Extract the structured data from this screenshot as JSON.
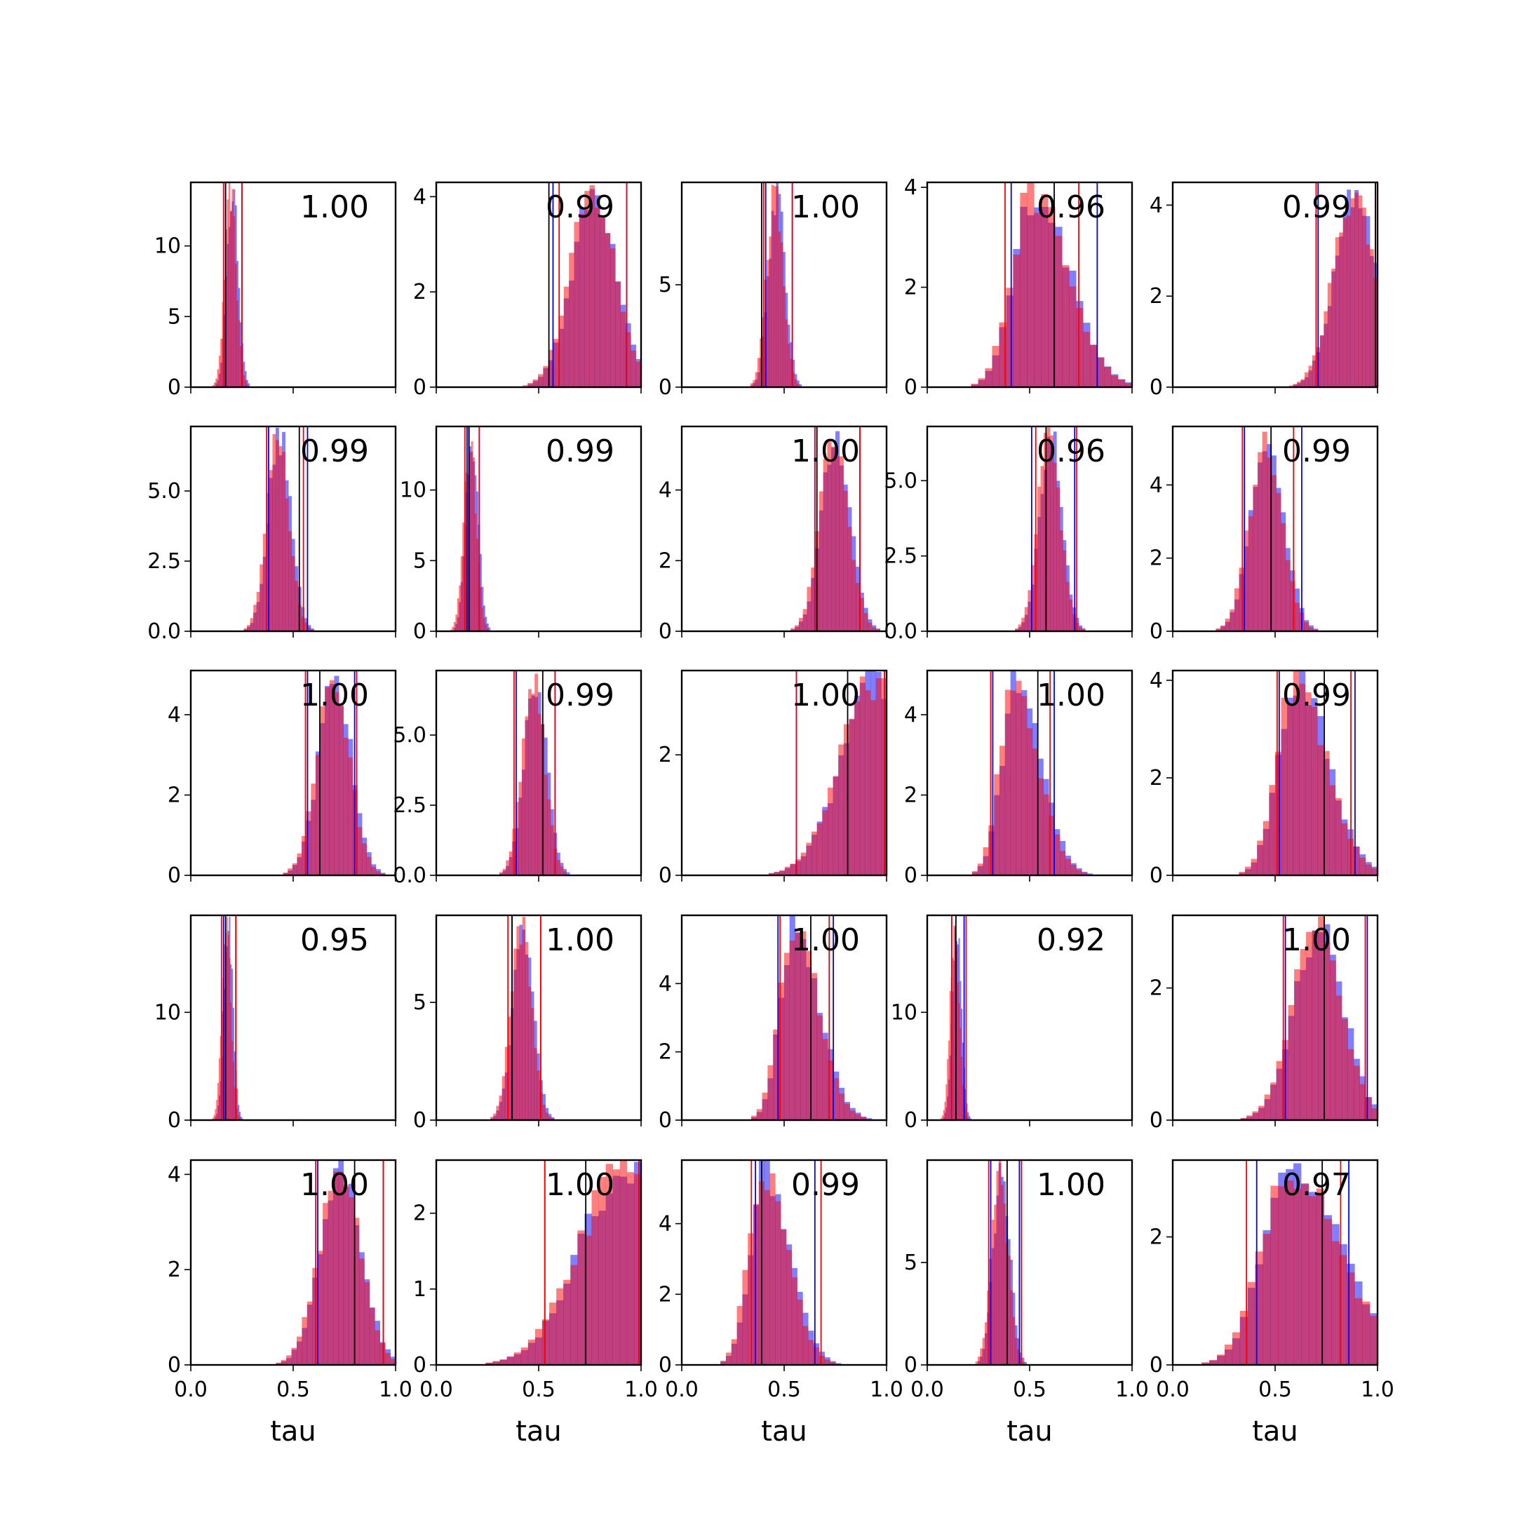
{
  "chart_data": {
    "type": "histogram-grid",
    "rows": 5,
    "cols": 5,
    "xlabel": "tau",
    "xlim": [
      0.0,
      1.0
    ],
    "xticks": [
      0.0,
      0.5,
      1.0
    ],
    "xtick_labels": [
      "0.0",
      "0.5",
      "1.0"
    ],
    "series_colors": {
      "blue": "#0000ff",
      "red": "#ff0000",
      "median": "#000000"
    },
    "series_alpha": 0.5,
    "panels": [
      {
        "corr": "1.00",
        "ylim": [
          0,
          14.5
        ],
        "yticks": [
          0,
          5,
          10
        ],
        "ylabels": [
          "0",
          "5",
          "10"
        ],
        "mean": 0.2,
        "sd": 0.028,
        "skew": 0,
        "vb": [
          0.17,
          0.25
        ],
        "vr": [
          0.16,
          0.25
        ],
        "vk": 0.17
      },
      {
        "corr": "0.99",
        "ylim": [
          0,
          4.3
        ],
        "yticks": [
          0,
          2,
          4
        ],
        "ylabels": [
          "0",
          "2",
          "4"
        ],
        "mean": 0.77,
        "sd": 0.11,
        "skew": 0,
        "vb": [
          0.57,
          0.93
        ],
        "vr": [
          0.6,
          0.93
        ],
        "vk": 0.55
      },
      {
        "corr": "1.00",
        "ylim": [
          0,
          10
        ],
        "yticks": [
          0,
          5
        ],
        "ylabels": [
          "0",
          "5"
        ],
        "mean": 0.46,
        "sd": 0.04,
        "skew": 0,
        "vb": [
          0.41,
          0.54
        ],
        "vr": [
          0.4,
          0.54
        ],
        "vk": 0.39
      },
      {
        "corr": "0.96",
        "ylim": [
          0,
          4.1
        ],
        "yticks": [
          0,
          2,
          4
        ],
        "ylabels": [
          "0",
          "2",
          "4"
        ],
        "mean": 0.52,
        "sd": 0.1,
        "skew": 1,
        "vb": [
          0.41,
          0.83
        ],
        "vr": [
          0.38,
          0.74
        ],
        "vk": 0.62
      },
      {
        "corr": "0.99",
        "ylim": [
          0,
          4.5
        ],
        "yticks": [
          0,
          2,
          4
        ],
        "ylabels": [
          "0",
          "2",
          "4"
        ],
        "mean": 0.89,
        "sd": 0.1,
        "skew": 0,
        "vb": [
          0.71,
          0.99
        ],
        "vr": [
          0.7,
          0.99
        ],
        "vk": 0.99
      },
      {
        "corr": "0.99",
        "ylim": [
          0,
          7.3
        ],
        "yticks": [
          0,
          2.5,
          5.0
        ],
        "ylabels": [
          "0.0",
          "2.5",
          "5.0"
        ],
        "mean": 0.43,
        "sd": 0.055,
        "skew": 0,
        "vb": [
          0.38,
          0.57
        ],
        "vr": [
          0.37,
          0.55
        ],
        "vk": 0.53
      },
      {
        "corr": "0.99",
        "ylim": [
          0,
          14.5
        ],
        "yticks": [
          0,
          5,
          10
        ],
        "ylabels": [
          "0",
          "5",
          "10"
        ],
        "mean": 0.17,
        "sd": 0.03,
        "skew": 0,
        "vb": [
          0.15,
          0.21
        ],
        "vr": [
          0.14,
          0.21
        ],
        "vk": 0.16
      },
      {
        "corr": "1.00",
        "ylim": [
          0,
          5.8
        ],
        "yticks": [
          0,
          2,
          4
        ],
        "ylabels": [
          "0",
          "2",
          "4"
        ],
        "mean": 0.75,
        "sd": 0.07,
        "skew": 0,
        "vb": [
          0.65,
          0.87
        ],
        "vr": [
          0.65,
          0.87
        ],
        "vk": 0.66
      },
      {
        "corr": "0.96",
        "ylim": [
          0,
          6.8
        ],
        "yticks": [
          0,
          2.5,
          5.0
        ],
        "ylabels": [
          "0.0",
          "2.5",
          "5.0"
        ],
        "mean": 0.6,
        "sd": 0.055,
        "skew": 0,
        "vb": [
          0.51,
          0.72
        ],
        "vr": [
          0.53,
          0.73
        ],
        "vk": 0.58
      },
      {
        "corr": "0.99",
        "ylim": [
          0,
          5.6
        ],
        "yticks": [
          0,
          2,
          4
        ],
        "ylabels": [
          "0",
          "2",
          "4"
        ],
        "mean": 0.46,
        "sd": 0.08,
        "skew": 0,
        "vb": [
          0.35,
          0.63
        ],
        "vr": [
          0.34,
          0.59
        ],
        "vk": 0.48
      },
      {
        "corr": "1.00",
        "ylim": [
          0,
          5.1
        ],
        "yticks": [
          0,
          2,
          4
        ],
        "ylabels": [
          "0",
          "2",
          "4"
        ],
        "mean": 0.7,
        "sd": 0.08,
        "skew": 0,
        "vb": [
          0.57,
          0.8
        ],
        "vr": [
          0.56,
          0.81
        ],
        "vk": 0.63
      },
      {
        "corr": "0.99",
        "ylim": [
          0,
          7.3
        ],
        "yticks": [
          0,
          2.5,
          5.0
        ],
        "ylabels": [
          "0.0",
          "2.5",
          "5.0"
        ],
        "mean": 0.48,
        "sd": 0.055,
        "skew": 0,
        "vb": [
          0.39,
          0.58
        ],
        "vr": [
          0.38,
          0.58
        ],
        "vk": 0.52
      },
      {
        "corr": "1.00",
        "ylim": [
          0,
          3.4
        ],
        "yticks": [
          0,
          2
        ],
        "ylabels": [
          "0",
          "2"
        ],
        "mean": 0.95,
        "sd": 0.17,
        "skew": 0,
        "vb": [
          0.56,
          0.99
        ],
        "vr": [
          0.56,
          0.99
        ],
        "vk": 0.81
      },
      {
        "corr": "1.00",
        "ylim": [
          0,
          5.1
        ],
        "yticks": [
          0,
          2,
          4
        ],
        "ylabels": [
          "0",
          "2",
          "4"
        ],
        "mean": 0.43,
        "sd": 0.07,
        "skew": 1,
        "vb": [
          0.32,
          0.62
        ],
        "vr": [
          0.31,
          0.6
        ],
        "vk": 0.54
      },
      {
        "corr": "0.99",
        "ylim": [
          0,
          4.2
        ],
        "yticks": [
          0,
          2,
          4
        ],
        "ylabels": [
          "0",
          "2",
          "4"
        ],
        "mean": 0.6,
        "sd": 0.09,
        "skew": 1,
        "vb": [
          0.52,
          0.89
        ],
        "vr": [
          0.51,
          0.87
        ],
        "vk": 0.74
      },
      {
        "corr": "0.95",
        "ylim": [
          0,
          19
        ],
        "yticks": [
          0,
          10
        ],
        "ylabels": [
          "0",
          "10"
        ],
        "mean": 0.18,
        "sd": 0.022,
        "skew": 0,
        "vb": [
          0.16,
          0.22
        ],
        "vr": [
          0.15,
          0.22
        ],
        "vk": 0.17
      },
      {
        "corr": "1.00",
        "ylim": [
          0,
          8.7
        ],
        "yticks": [
          0,
          5
        ],
        "ylabels": [
          "0",
          "5"
        ],
        "mean": 0.42,
        "sd": 0.05,
        "skew": 0,
        "vb": [
          0.37,
          0.51
        ],
        "vr": [
          0.35,
          0.51
        ],
        "vk": 0.37
      },
      {
        "corr": "1.00",
        "ylim": [
          0,
          6.0
        ],
        "yticks": [
          0,
          2,
          4
        ],
        "ylabels": [
          "0",
          "2",
          "4"
        ],
        "mean": 0.55,
        "sd": 0.07,
        "skew": 1,
        "vb": [
          0.47,
          0.74
        ],
        "vr": [
          0.48,
          0.72
        ],
        "vk": 0.63
      },
      {
        "corr": "0.92",
        "ylim": [
          0,
          19
        ],
        "yticks": [
          0,
          10
        ],
        "ylabels": [
          "0",
          "10"
        ],
        "mean": 0.14,
        "sd": 0.022,
        "skew": 0,
        "vb": [
          0.12,
          0.18
        ],
        "vr": [
          0.12,
          0.19
        ],
        "vk": 0.14
      },
      {
        "corr": "1.00",
        "ylim": [
          0,
          3.1
        ],
        "yticks": [
          0,
          2
        ],
        "ylabels": [
          "0",
          "2"
        ],
        "mean": 0.71,
        "sd": 0.12,
        "skew": 0,
        "vb": [
          0.55,
          0.95
        ],
        "vr": [
          0.54,
          0.94
        ],
        "vk": 0.74
      },
      {
        "corr": "1.00",
        "ylim": [
          0,
          4.3
        ],
        "yticks": [
          0,
          2,
          4
        ],
        "ylabels": [
          "0",
          "2",
          "4"
        ],
        "mean": 0.73,
        "sd": 0.1,
        "skew": 0,
        "vb": [
          0.62,
          0.94
        ],
        "vr": [
          0.61,
          0.94
        ],
        "vk": 0.8
      },
      {
        "corr": "1.00",
        "ylim": [
          0,
          2.7
        ],
        "yticks": [
          0,
          1,
          2
        ],
        "ylabels": [
          "0",
          "1",
          "2"
        ],
        "mean": 0.92,
        "sd": 0.22,
        "skew": 0,
        "vb": [
          0.53,
          0.99
        ],
        "vr": [
          0.53,
          0.99
        ],
        "vk": 0.73
      },
      {
        "corr": "0.99",
        "ylim": [
          0,
          5.8
        ],
        "yticks": [
          0,
          2,
          4
        ],
        "ylabels": [
          "0",
          "2",
          "4"
        ],
        "mean": 0.4,
        "sd": 0.07,
        "skew": 1,
        "vb": [
          0.36,
          0.65
        ],
        "vr": [
          0.34,
          0.68
        ],
        "vk": 0.39
      },
      {
        "corr": "1.00",
        "ylim": [
          0,
          10
        ],
        "yticks": [
          0,
          5
        ],
        "ylabels": [
          "0",
          "5"
        ],
        "mean": 0.36,
        "sd": 0.04,
        "skew": 0,
        "vb": [
          0.31,
          0.45
        ],
        "vr": [
          0.3,
          0.46
        ],
        "vk": 0.39
      },
      {
        "corr": "0.97",
        "ylim": [
          0,
          3.2
        ],
        "yticks": [
          0,
          2
        ],
        "ylabels": [
          "0",
          "2"
        ],
        "mean": 0.58,
        "sd": 0.14,
        "skew": 1,
        "vb": [
          0.41,
          0.86
        ],
        "vr": [
          0.36,
          0.82
        ],
        "vk": 0.73
      }
    ]
  }
}
